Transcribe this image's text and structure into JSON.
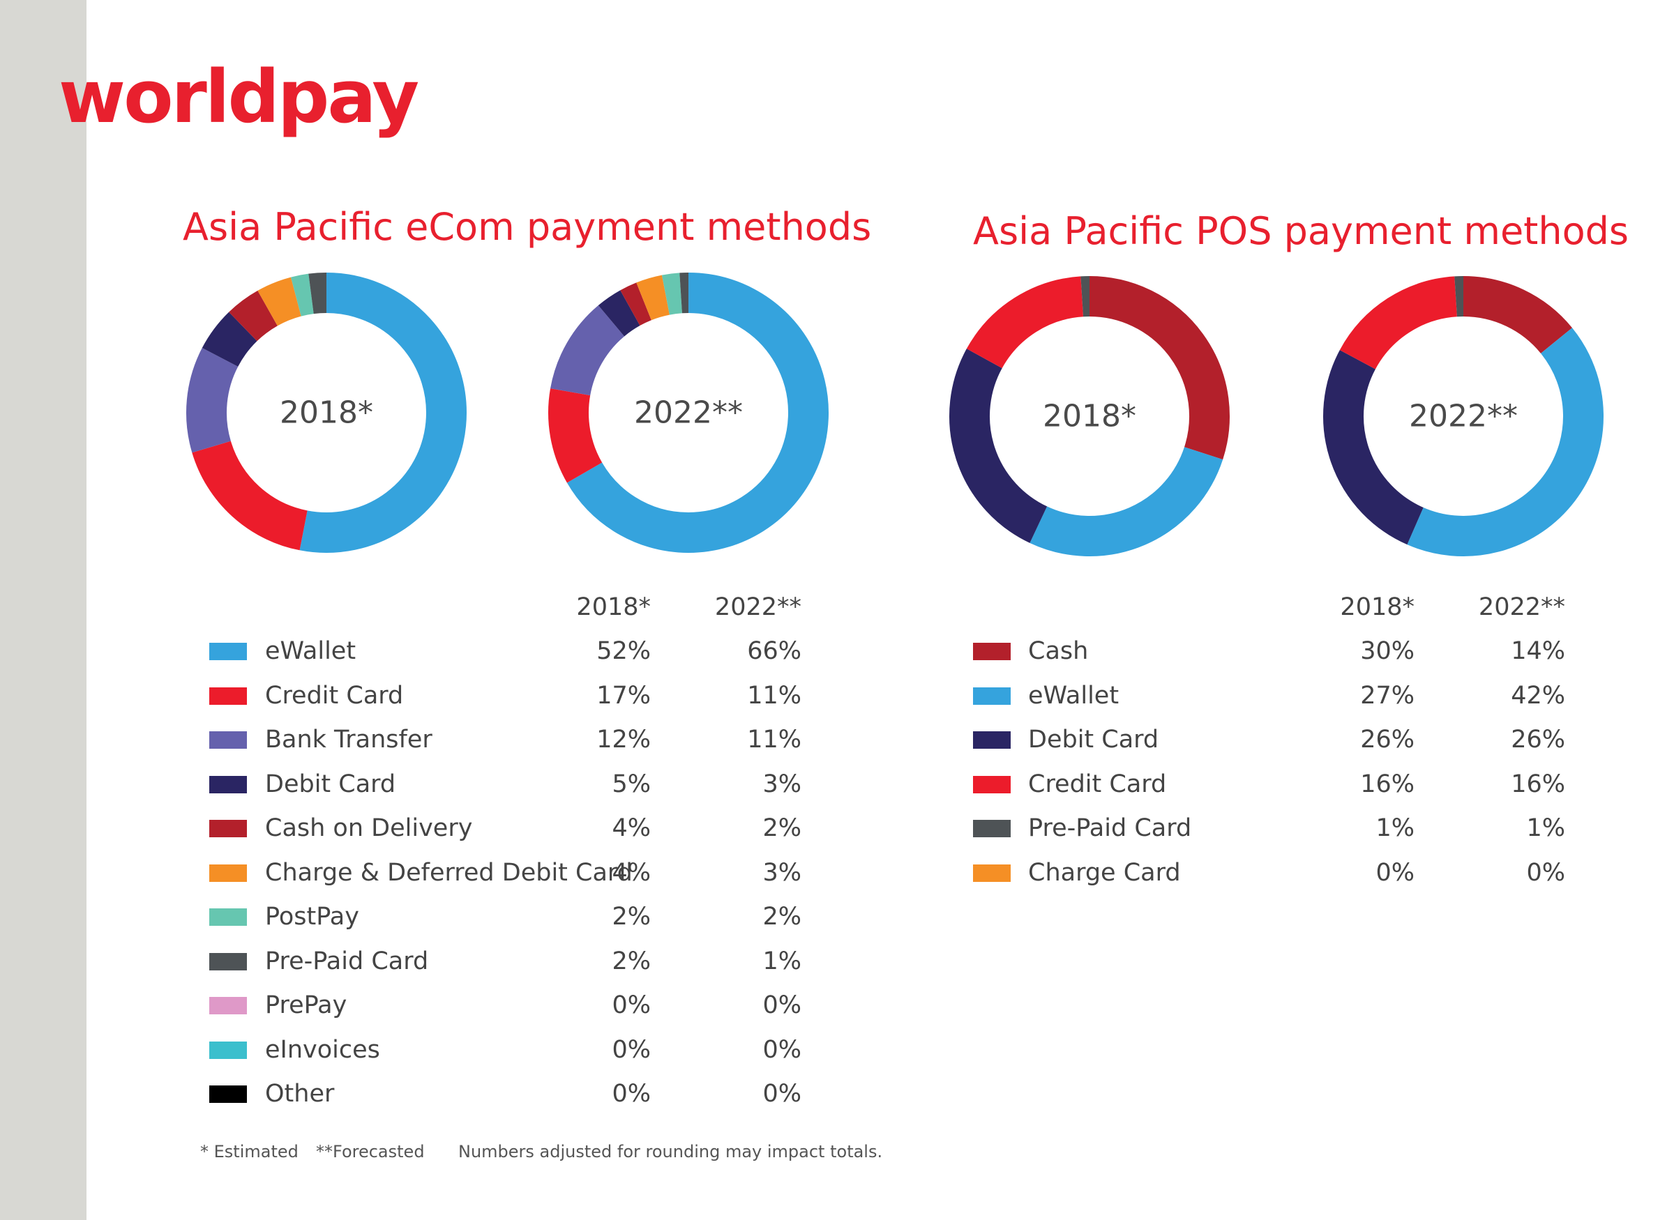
{
  "brand": {
    "logo_text": "worldpay"
  },
  "footnotes": {
    "estimated": "* Estimated",
    "forecasted": "**Forecasted",
    "rounding": "Numbers adjusted for rounding may impact totals."
  },
  "chart_data": [
    {
      "type": "pie",
      "title": "Asia Pacific eCom payment methods",
      "years": [
        "2018*",
        "2022**"
      ],
      "series": [
        {
          "name": "eWallet",
          "color": "#35a3dd",
          "values": [
            52,
            66
          ]
        },
        {
          "name": "Credit Card",
          "color": "#ec1c2b",
          "values": [
            17,
            11
          ]
        },
        {
          "name": "Bank Transfer",
          "color": "#6561ad",
          "values": [
            12,
            11
          ]
        },
        {
          "name": "Debit Card",
          "color": "#2a2563",
          "values": [
            5,
            3
          ]
        },
        {
          "name": "Cash on Delivery",
          "color": "#b3202b",
          "values": [
            4,
            2
          ]
        },
        {
          "name": "Charge & Deferred Debit Card",
          "color": "#f58f25",
          "values": [
            4,
            3
          ]
        },
        {
          "name": "PostPay",
          "color": "#66c6b0",
          "values": [
            2,
            2
          ]
        },
        {
          "name": "Pre-Paid Card",
          "color": "#4e5356",
          "values": [
            2,
            1
          ]
        },
        {
          "name": "PrePay",
          "color": "#df99c8",
          "values": [
            0,
            0
          ]
        },
        {
          "name": "eInvoices",
          "color": "#3bbfcd",
          "values": [
            0,
            0
          ]
        },
        {
          "name": "Other",
          "color": "#000000",
          "values": [
            0,
            0
          ]
        }
      ],
      "value_labels": [
        [
          "52%",
          "66%"
        ],
        [
          "17%",
          "11%"
        ],
        [
          "12%",
          "11%"
        ],
        [
          "5%",
          "3%"
        ],
        [
          "4%",
          "2%"
        ],
        [
          "4%",
          "3%"
        ],
        [
          "2%",
          "2%"
        ],
        [
          "2%",
          "1%"
        ],
        [
          "0%",
          "0%"
        ],
        [
          "0%",
          "0%"
        ],
        [
          "0%",
          "0%"
        ]
      ]
    },
    {
      "type": "pie",
      "title": "Asia Pacific POS payment methods",
      "years": [
        "2018*",
        "2022**"
      ],
      "series": [
        {
          "name": "Cash",
          "color": "#b3202b",
          "values": [
            30,
            14
          ]
        },
        {
          "name": "eWallet",
          "color": "#35a3dd",
          "values": [
            27,
            42
          ]
        },
        {
          "name": "Debit Card",
          "color": "#2a2563",
          "values": [
            26,
            26
          ]
        },
        {
          "name": "Credit Card",
          "color": "#ec1c2b",
          "values": [
            16,
            16
          ]
        },
        {
          "name": "Pre-Paid Card",
          "color": "#4e5356",
          "values": [
            1,
            1
          ]
        },
        {
          "name": "Charge Card",
          "color": "#f58f25",
          "values": [
            0,
            0
          ]
        }
      ],
      "value_labels": [
        [
          "30%",
          "14%"
        ],
        [
          "27%",
          "42%"
        ],
        [
          "26%",
          "26%"
        ],
        [
          "16%",
          "16%"
        ],
        [
          "1%",
          "1%"
        ],
        [
          "0%",
          "0%"
        ]
      ]
    }
  ]
}
